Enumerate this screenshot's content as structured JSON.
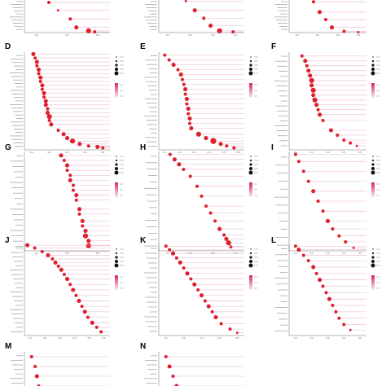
{
  "figure": {
    "panel_letters": [
      "D",
      "E",
      "F",
      "G",
      "H",
      "I",
      "J",
      "K",
      "L",
      "M",
      "N"
    ]
  },
  "colors": {
    "dot": "#e01f2d",
    "stem": "#e8b4cc",
    "colorbar_high": "#d6246e",
    "colorbar_low": "#fde8f1"
  },
  "chart_data": [
    {
      "panel": "top-left",
      "type": "scatter",
      "title": "",
      "xlabel": "",
      "ylabel": "",
      "x_ticks": [
        "0.1",
        "0.2",
        "0.3"
      ],
      "xlim": [
        0.06,
        0.34
      ],
      "points": [
        [
          0.14,
          0.12,
          2
        ],
        [
          0.17,
          0.35,
          1
        ],
        [
          0.21,
          0.6,
          2
        ],
        [
          0.23,
          0.85,
          3
        ],
        [
          0.27,
          0.95,
          4
        ],
        [
          0.29,
          0.98,
          2
        ]
      ]
    },
    {
      "panel": "top-middle",
      "type": "scatter",
      "title": "",
      "xlabel": "",
      "ylabel": "",
      "x_ticks": [
        "0.1",
        "0.2",
        "0.3",
        "0.4"
      ],
      "xlim": [
        0.06,
        0.44
      ],
      "points": [
        [
          0.18,
          0.08,
          1
        ],
        [
          0.22,
          0.35,
          3
        ],
        [
          0.26,
          0.58,
          2
        ],
        [
          0.29,
          0.8,
          3
        ],
        [
          0.33,
          0.95,
          4
        ],
        [
          0.39,
          0.98,
          2
        ]
      ]
    },
    {
      "panel": "top-right",
      "type": "scatter",
      "title": "",
      "xlabel": "",
      "ylabel": "",
      "x_ticks": [
        "0.1",
        "0.2",
        "0.3",
        "0.4"
      ],
      "xlim": [
        0.06,
        0.44
      ],
      "points": [
        [
          0.18,
          0.1,
          2
        ],
        [
          0.21,
          0.4,
          3
        ],
        [
          0.24,
          0.62,
          2
        ],
        [
          0.27,
          0.85,
          3
        ],
        [
          0.33,
          0.96,
          2
        ],
        [
          0.4,
          0.99,
          1
        ]
      ]
    },
    {
      "panel": "D",
      "type": "scatter",
      "title": "",
      "xlabel": "",
      "ylabel": "",
      "x_ticks": [
        "0.1",
        "0.2",
        "0.3",
        "0.4",
        "0.5"
      ],
      "xlim": [
        0.06,
        0.54
      ],
      "points": [
        [
          0.11,
          0.02,
          3
        ],
        [
          0.12,
          0.06,
          2
        ],
        [
          0.13,
          0.1,
          3
        ],
        [
          0.13,
          0.14,
          2
        ],
        [
          0.14,
          0.18,
          3
        ],
        [
          0.14,
          0.22,
          2
        ],
        [
          0.15,
          0.26,
          3
        ],
        [
          0.15,
          0.3,
          2
        ],
        [
          0.16,
          0.34,
          3
        ],
        [
          0.16,
          0.38,
          2
        ],
        [
          0.17,
          0.42,
          3
        ],
        [
          0.17,
          0.46,
          2
        ],
        [
          0.18,
          0.5,
          3
        ],
        [
          0.18,
          0.54,
          3
        ],
        [
          0.19,
          0.58,
          2
        ],
        [
          0.19,
          0.62,
          3
        ],
        [
          0.2,
          0.66,
          4
        ],
        [
          0.2,
          0.7,
          2
        ],
        [
          0.21,
          0.74,
          3
        ],
        [
          0.25,
          0.8,
          2
        ],
        [
          0.28,
          0.84,
          3
        ],
        [
          0.3,
          0.88,
          3
        ],
        [
          0.33,
          0.91,
          4
        ],
        [
          0.37,
          0.94,
          3
        ],
        [
          0.42,
          0.96,
          2
        ],
        [
          0.47,
          0.97,
          3
        ],
        [
          0.5,
          0.98,
          2
        ]
      ]
    },
    {
      "panel": "E",
      "type": "scatter",
      "title": "",
      "xlabel": "",
      "ylabel": "",
      "x_ticks": [
        "0.1",
        "0.2",
        "0.3",
        "0.4",
        "0.5",
        "0.6"
      ],
      "xlim": [
        0.06,
        0.64
      ],
      "points": [
        [
          0.1,
          0.03,
          2
        ],
        [
          0.13,
          0.08,
          2
        ],
        [
          0.16,
          0.13,
          3
        ],
        [
          0.19,
          0.18,
          2
        ],
        [
          0.21,
          0.23,
          3
        ],
        [
          0.22,
          0.28,
          2
        ],
        [
          0.23,
          0.33,
          2
        ],
        [
          0.24,
          0.38,
          3
        ],
        [
          0.24,
          0.43,
          2
        ],
        [
          0.25,
          0.48,
          3
        ],
        [
          0.25,
          0.53,
          2
        ],
        [
          0.26,
          0.58,
          3
        ],
        [
          0.26,
          0.63,
          2
        ],
        [
          0.27,
          0.68,
          3
        ],
        [
          0.27,
          0.73,
          2
        ],
        [
          0.28,
          0.78,
          3
        ],
        [
          0.33,
          0.84,
          4
        ],
        [
          0.38,
          0.88,
          3
        ],
        [
          0.43,
          0.91,
          5
        ],
        [
          0.48,
          0.94,
          3
        ],
        [
          0.52,
          0.96,
          2
        ],
        [
          0.57,
          0.98,
          2
        ]
      ]
    },
    {
      "panel": "F",
      "type": "scatter",
      "title": "",
      "xlabel": "",
      "ylabel": "",
      "x_ticks": [
        "0.1",
        "0.2",
        "0.3",
        "0.4",
        "0.5"
      ],
      "xlim": [
        0.06,
        0.54
      ],
      "points": [
        [
          0.14,
          0.04,
          2
        ],
        [
          0.16,
          0.09,
          3
        ],
        [
          0.17,
          0.14,
          2
        ],
        [
          0.18,
          0.19,
          3
        ],
        [
          0.19,
          0.24,
          3
        ],
        [
          0.2,
          0.29,
          4
        ],
        [
          0.2,
          0.34,
          3
        ],
        [
          0.21,
          0.39,
          4
        ],
        [
          0.21,
          0.44,
          3
        ],
        [
          0.22,
          0.49,
          4
        ],
        [
          0.23,
          0.54,
          3
        ],
        [
          0.24,
          0.59,
          2
        ],
        [
          0.25,
          0.64,
          3
        ],
        [
          0.27,
          0.7,
          2
        ],
        [
          0.32,
          0.8,
          3
        ],
        [
          0.36,
          0.85,
          2
        ],
        [
          0.4,
          0.9,
          2
        ],
        [
          0.44,
          0.93,
          2
        ],
        [
          0.48,
          0.96,
          1
        ]
      ]
    },
    {
      "panel": "G",
      "type": "scatter",
      "title": "",
      "xlabel": "",
      "ylabel": "",
      "x_ticks": [
        "0.1",
        "0.2",
        "0.3"
      ],
      "xlim": [
        0.06,
        0.34
      ],
      "points": [
        [
          0.18,
          0.04,
          3
        ],
        [
          0.19,
          0.09,
          2
        ],
        [
          0.2,
          0.14,
          3
        ],
        [
          0.2,
          0.19,
          2
        ],
        [
          0.21,
          0.24,
          2
        ],
        [
          0.21,
          0.29,
          3
        ],
        [
          0.22,
          0.34,
          2
        ],
        [
          0.22,
          0.39,
          2
        ],
        [
          0.23,
          0.44,
          3
        ],
        [
          0.23,
          0.49,
          2
        ],
        [
          0.24,
          0.58,
          3
        ],
        [
          0.24,
          0.63,
          2
        ],
        [
          0.25,
          0.7,
          3
        ],
        [
          0.25,
          0.75,
          2
        ],
        [
          0.26,
          0.8,
          3
        ],
        [
          0.26,
          0.85,
          4
        ],
        [
          0.27,
          0.9,
          3
        ],
        [
          0.27,
          0.95,
          4
        ]
      ]
    },
    {
      "panel": "H",
      "type": "scatter",
      "title": "",
      "xlabel": "",
      "ylabel": "",
      "x_ticks": [
        "0.1",
        "0.2",
        "0.3",
        "0.4"
      ],
      "xlim": [
        0.06,
        0.44
      ],
      "points": [
        [
          0.11,
          0.03,
          2
        ],
        [
          0.13,
          0.08,
          3
        ],
        [
          0.15,
          0.13,
          3
        ],
        [
          0.17,
          0.18,
          2
        ],
        [
          0.2,
          0.25,
          2
        ],
        [
          0.23,
          0.35,
          2
        ],
        [
          0.25,
          0.45,
          2
        ],
        [
          0.27,
          0.55,
          2
        ],
        [
          0.29,
          0.62,
          2
        ],
        [
          0.31,
          0.7,
          2
        ],
        [
          0.33,
          0.78,
          3
        ],
        [
          0.35,
          0.84,
          2
        ],
        [
          0.36,
          0.88,
          3
        ],
        [
          0.37,
          0.92,
          4
        ],
        [
          0.38,
          0.96,
          2
        ]
      ]
    },
    {
      "panel": "I",
      "type": "scatter",
      "title": "",
      "xlabel": "",
      "ylabel": "",
      "x_ticks": [
        "0.1",
        "0.2",
        "0.3",
        "0.4",
        "0.5"
      ],
      "xlim": [
        0.06,
        0.54
      ],
      "points": [
        [
          0.1,
          0.03,
          2
        ],
        [
          0.12,
          0.1,
          2
        ],
        [
          0.15,
          0.2,
          2
        ],
        [
          0.18,
          0.3,
          2
        ],
        [
          0.21,
          0.4,
          3
        ],
        [
          0.24,
          0.5,
          2
        ],
        [
          0.27,
          0.6,
          2
        ],
        [
          0.3,
          0.7,
          3
        ],
        [
          0.33,
          0.78,
          2
        ],
        [
          0.37,
          0.85,
          2
        ],
        [
          0.41,
          0.91,
          2
        ],
        [
          0.46,
          0.97,
          1
        ]
      ]
    },
    {
      "panel": "J",
      "type": "scatter",
      "title": "",
      "xlabel": "",
      "ylabel": "",
      "x_ticks": [
        "0.1",
        "0.2",
        "0.3",
        "0.4",
        "0.5",
        "0.6"
      ],
      "xlim": [
        0.06,
        0.64
      ],
      "points": [
        [
          0.08,
          0.01,
          3
        ],
        [
          0.13,
          0.04,
          2
        ],
        [
          0.18,
          0.08,
          2
        ],
        [
          0.22,
          0.12,
          3
        ],
        [
          0.25,
          0.16,
          2
        ],
        [
          0.27,
          0.2,
          3
        ],
        [
          0.29,
          0.24,
          2
        ],
        [
          0.31,
          0.28,
          3
        ],
        [
          0.33,
          0.33,
          2
        ],
        [
          0.35,
          0.38,
          3
        ],
        [
          0.37,
          0.44,
          2
        ],
        [
          0.39,
          0.5,
          3
        ],
        [
          0.41,
          0.56,
          2
        ],
        [
          0.43,
          0.62,
          3
        ],
        [
          0.45,
          0.68,
          2
        ],
        [
          0.47,
          0.74,
          3
        ],
        [
          0.49,
          0.8,
          2
        ],
        [
          0.52,
          0.86,
          3
        ],
        [
          0.55,
          0.91,
          2
        ],
        [
          0.58,
          0.96,
          2
        ]
      ]
    },
    {
      "panel": "K",
      "type": "scatter",
      "title": "",
      "xlabel": "",
      "ylabel": "",
      "x_ticks": [
        "0.1",
        "0.2",
        "0.3",
        "0.4",
        "0.5"
      ],
      "xlim": [
        0.06,
        0.54
      ],
      "points": [
        [
          0.1,
          0.02,
          2
        ],
        [
          0.12,
          0.06,
          2
        ],
        [
          0.14,
          0.1,
          3
        ],
        [
          0.16,
          0.15,
          2
        ],
        [
          0.18,
          0.2,
          3
        ],
        [
          0.2,
          0.26,
          2
        ],
        [
          0.22,
          0.32,
          3
        ],
        [
          0.24,
          0.38,
          2
        ],
        [
          0.26,
          0.44,
          3
        ],
        [
          0.28,
          0.5,
          2
        ],
        [
          0.3,
          0.56,
          3
        ],
        [
          0.32,
          0.62,
          2
        ],
        [
          0.34,
          0.68,
          3
        ],
        [
          0.36,
          0.74,
          2
        ],
        [
          0.38,
          0.8,
          3
        ],
        [
          0.41,
          0.87,
          2
        ],
        [
          0.46,
          0.93,
          2
        ],
        [
          0.5,
          0.97,
          1
        ]
      ]
    },
    {
      "panel": "L",
      "type": "scatter",
      "title": "",
      "xlabel": "",
      "ylabel": "",
      "x_ticks": [
        "0.1",
        "0.2",
        "0.3",
        "0.4",
        "0.5"
      ],
      "xlim": [
        0.06,
        0.54
      ],
      "points": [
        [
          0.1,
          0.02,
          2
        ],
        [
          0.12,
          0.06,
          3
        ],
        [
          0.15,
          0.12,
          2
        ],
        [
          0.18,
          0.18,
          2
        ],
        [
          0.21,
          0.25,
          3
        ],
        [
          0.23,
          0.32,
          2
        ],
        [
          0.25,
          0.39,
          3
        ],
        [
          0.27,
          0.46,
          2
        ],
        [
          0.29,
          0.53,
          2
        ],
        [
          0.31,
          0.6,
          3
        ],
        [
          0.33,
          0.67,
          2
        ],
        [
          0.35,
          0.74,
          2
        ],
        [
          0.37,
          0.81,
          2
        ],
        [
          0.4,
          0.88,
          2
        ],
        [
          0.44,
          0.94,
          1
        ]
      ]
    },
    {
      "panel": "M",
      "type": "scatter",
      "title": "",
      "xlabel": "",
      "ylabel": "",
      "x_ticks": [],
      "xlim": [
        0.06,
        0.54
      ],
      "points": [
        [
          0.1,
          0.1,
          2
        ],
        [
          0.12,
          0.3,
          2
        ],
        [
          0.13,
          0.5,
          3
        ],
        [
          0.14,
          0.7,
          2
        ],
        [
          0.15,
          0.9,
          3
        ]
      ]
    },
    {
      "panel": "N",
      "type": "scatter",
      "title": "",
      "xlabel": "",
      "ylabel": "",
      "x_ticks": [],
      "xlim": [
        0.06,
        0.54
      ],
      "points": [
        [
          0.1,
          0.1,
          2
        ],
        [
          0.12,
          0.3,
          3
        ],
        [
          0.14,
          0.5,
          2
        ],
        [
          0.16,
          0.7,
          3
        ],
        [
          0.18,
          0.9,
          2
        ]
      ]
    }
  ]
}
